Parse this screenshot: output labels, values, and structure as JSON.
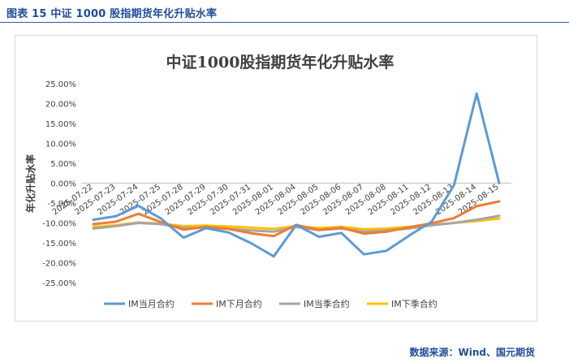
{
  "caption": "图表 15  中证 1000 股指期货年化升贴水率",
  "source": "数据来源：Wind、国元期货",
  "chart_data": {
    "type": "line",
    "title": "中证1000股指期货年化升贴水率",
    "xlabel": "",
    "ylabel": "年化升贴水率",
    "ylim": [
      -0.25,
      0.25
    ],
    "y_ticks": [
      0.25,
      0.2,
      0.15,
      0.1,
      0.05,
      0.0,
      -0.05,
      -0.1,
      -0.15,
      -0.2,
      -0.25
    ],
    "y_tick_labels": [
      "25.00%",
      "20.00%",
      "15.00%",
      "10.00%",
      "5.00%",
      "0.00%",
      "-5.00%",
      "-10.00%",
      "-15.00%",
      "-20.00%",
      "-25.00%"
    ],
    "categories": [
      "2025-07-22",
      "2025-07-23",
      "2025-07-24",
      "2025-07-25",
      "2025-07-28",
      "2025-07-29",
      "2025-07-30",
      "2025-07-31",
      "2025-08-01",
      "2025-08-04",
      "2025-08-05",
      "2025-08-06",
      "2025-08-07",
      "2025-08-08",
      "2025-08-11",
      "2025-08-12",
      "2025-08-13",
      "2025-08-14",
      "2025-08-15"
    ],
    "legend_position": "bottom",
    "grid": false,
    "series": [
      {
        "name": "IM当月合约",
        "color": "#5b9bd5",
        "values": [
          -0.092,
          -0.083,
          -0.057,
          -0.089,
          -0.137,
          -0.113,
          -0.124,
          -0.151,
          -0.184,
          -0.105,
          -0.135,
          -0.125,
          -0.179,
          -0.17,
          -0.132,
          -0.097,
          -0.005,
          0.225,
          0.0
        ]
      },
      {
        "name": "IM下月合约",
        "color": "#ed7d31",
        "values": [
          -0.103,
          -0.097,
          -0.077,
          -0.098,
          -0.117,
          -0.11,
          -0.115,
          -0.126,
          -0.133,
          -0.105,
          -0.118,
          -0.112,
          -0.127,
          -0.122,
          -0.111,
          -0.101,
          -0.088,
          -0.058,
          -0.046
        ]
      },
      {
        "name": "IM当季合约",
        "color": "#a5a5a5",
        "values": [
          -0.114,
          -0.108,
          -0.1,
          -0.103,
          -0.113,
          -0.112,
          -0.115,
          -0.119,
          -0.122,
          -0.11,
          -0.118,
          -0.114,
          -0.122,
          -0.119,
          -0.114,
          -0.106,
          -0.1,
          -0.092,
          -0.082
        ]
      },
      {
        "name": "IM下季合约",
        "color": "#ffc000",
        "values": [
          -0.11,
          -0.106,
          -0.099,
          -0.102,
          -0.108,
          -0.107,
          -0.109,
          -0.112,
          -0.115,
          -0.108,
          -0.113,
          -0.11,
          -0.116,
          -0.114,
          -0.11,
          -0.105,
          -0.1,
          -0.095,
          -0.089
        ]
      }
    ]
  }
}
